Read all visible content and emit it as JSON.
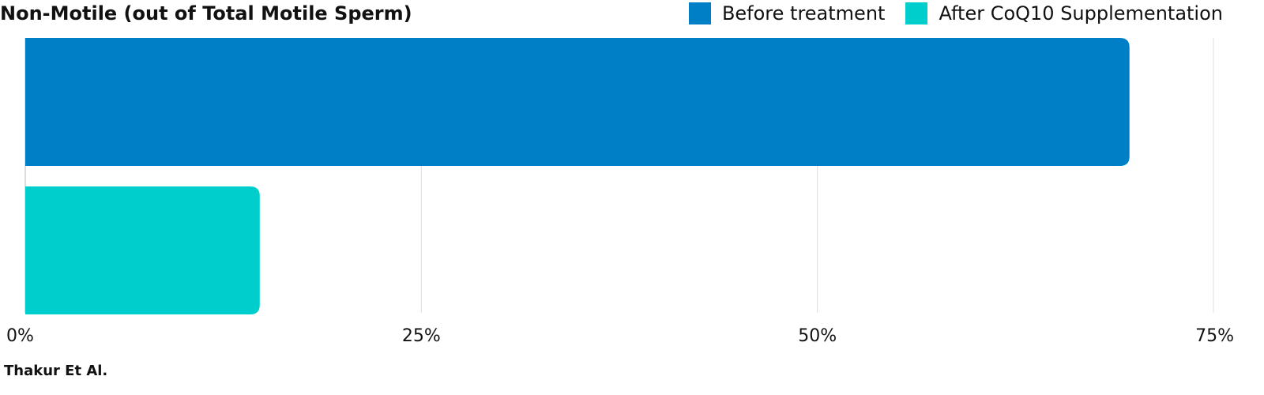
{
  "chart_data": {
    "type": "bar",
    "orientation": "horizontal",
    "title": "Non-Motile (out of Total Motile Sperm)",
    "categories": [
      "Before treatment",
      "After CoQ10 Supplementation"
    ],
    "series": [
      {
        "name": "Before treatment",
        "value": 69.7,
        "color": "#007fc6"
      },
      {
        "name": "After CoQ10 Supplementation",
        "value": 14.8,
        "color": "#00cecd"
      }
    ],
    "xlim": [
      0,
      75
    ],
    "xticks": [
      0,
      25,
      50,
      75
    ],
    "xtick_labels": [
      "0%",
      "25%",
      "50%",
      "75%"
    ],
    "grid": true,
    "legend_position": "top-right"
  },
  "source": "Thakur Et Al."
}
